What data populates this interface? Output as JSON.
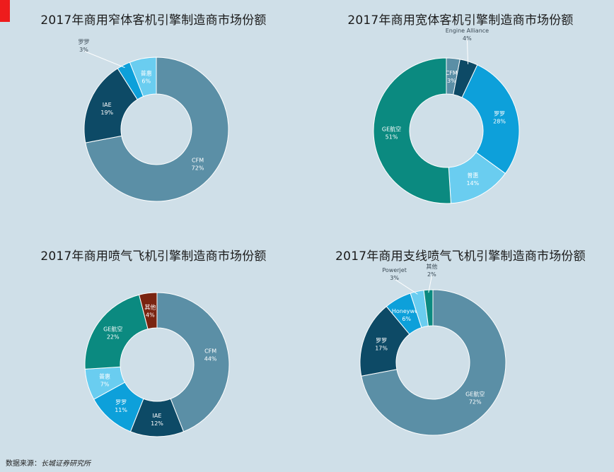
{
  "chart_data": [
    {
      "type": "pie",
      "title": "2017年商用窄体客机引擎制造商市场份额",
      "unit": "%",
      "slices": [
        {
          "name": "CFM",
          "value": 72,
          "label": "72%",
          "color": "#5b8fa6"
        },
        {
          "name": "IAE",
          "value": 19,
          "label": "19%",
          "color": "#0d4a66"
        },
        {
          "name": "罗罗",
          "value": 3,
          "label": "3%",
          "color": "#0da0da"
        },
        {
          "name": "普惠",
          "value": 6,
          "label": "6%",
          "color": "#6acdf0"
        }
      ]
    },
    {
      "type": "pie",
      "title": "2017年商用宽体客机引擎制造商市场份额",
      "unit": "%",
      "slices": [
        {
          "name": "CFM",
          "value": 3,
          "label": "3%",
          "color": "#5b8fa6"
        },
        {
          "name": "Engine Alliance",
          "value": 4,
          "label": "4%",
          "color": "#0d4a66"
        },
        {
          "name": "罗罗",
          "value": 28,
          "label": "28%",
          "color": "#0da0da"
        },
        {
          "name": "普惠",
          "value": 14,
          "label": "14%",
          "color": "#6acdf0"
        },
        {
          "name": "GE航空",
          "value": 51,
          "label": "51%",
          "color": "#0b8a80"
        }
      ]
    },
    {
      "type": "pie",
      "title": "2017年商用喷气飞机引擎制造商市场份额",
      "unit": "%",
      "slices": [
        {
          "name": "CFM",
          "value": 44,
          "label": "44%",
          "color": "#5b8fa6"
        },
        {
          "name": "IAE",
          "value": 12,
          "label": "12%",
          "color": "#0d4a66"
        },
        {
          "name": "罗罗",
          "value": 11,
          "label": "11%",
          "color": "#0da0da"
        },
        {
          "name": "普惠",
          "value": 7,
          "label": "7%",
          "color": "#6acdf0"
        },
        {
          "name": "GE航空",
          "value": 22,
          "label": "22%",
          "color": "#0b8a80"
        },
        {
          "name": "其他",
          "value": 4,
          "label": "4%",
          "color": "#7a2410"
        }
      ]
    },
    {
      "type": "pie",
      "title": "2017年商用支线喷气飞机引擎制造商市场份额",
      "unit": "%",
      "slices": [
        {
          "name": "GE航空",
          "value": 72,
          "label": "72%",
          "color": "#5b8fa6"
        },
        {
          "name": "罗罗",
          "value": 17,
          "label": "17%",
          "color": "#0d4a66"
        },
        {
          "name": "Honeywell",
          "value": 6,
          "label": "6%",
          "color": "#0da0da"
        },
        {
          "name": "Powerjet",
          "value": 3,
          "label": "3%",
          "color": "#6acdf0"
        },
        {
          "name": "其他",
          "value": 2,
          "label": "2%",
          "color": "#0b8a80"
        }
      ]
    }
  ],
  "footer": {
    "source_prefix": "数据来源：",
    "source_org": "长城证券研究所"
  }
}
